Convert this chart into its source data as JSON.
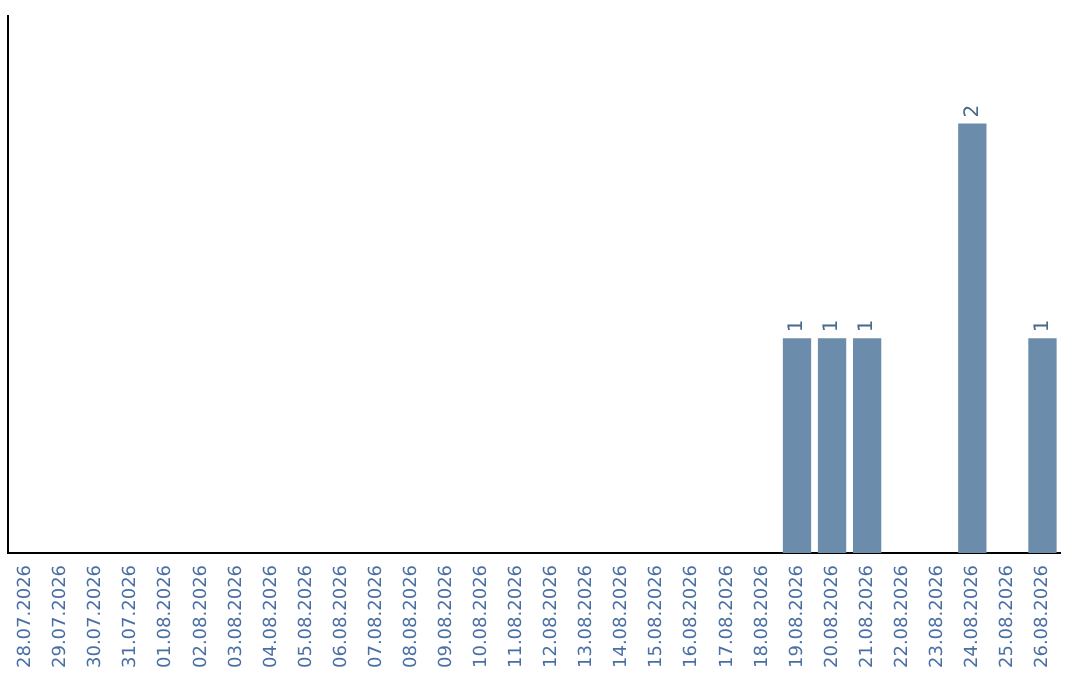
{
  "chart_data": {
    "type": "bar",
    "categories": [
      "28.07.2026",
      "29.07.2026",
      "30.07.2026",
      "31.07.2026",
      "01.08.2026",
      "02.08.2026",
      "03.08.2026",
      "04.08.2026",
      "05.08.2026",
      "06.08.2026",
      "07.08.2026",
      "08.08.2026",
      "09.08.2026",
      "10.08.2026",
      "11.08.2026",
      "12.08.2026",
      "13.08.2026",
      "14.08.2026",
      "15.08.2026",
      "16.08.2026",
      "17.08.2026",
      "18.08.2026",
      "19.08.2026",
      "20.08.2026",
      "21.08.2026",
      "22.08.2026",
      "23.08.2026",
      "24.08.2026",
      "25.08.2026",
      "26.08.2026"
    ],
    "values": [
      null,
      null,
      null,
      null,
      null,
      null,
      null,
      null,
      null,
      null,
      null,
      null,
      null,
      null,
      null,
      null,
      null,
      null,
      null,
      null,
      null,
      null,
      1,
      1,
      1,
      null,
      null,
      2,
      null,
      1
    ],
    "data_labels": true,
    "color": "#6b8caa",
    "tick_labels": "x",
    "grid": false,
    "legend": false
  }
}
